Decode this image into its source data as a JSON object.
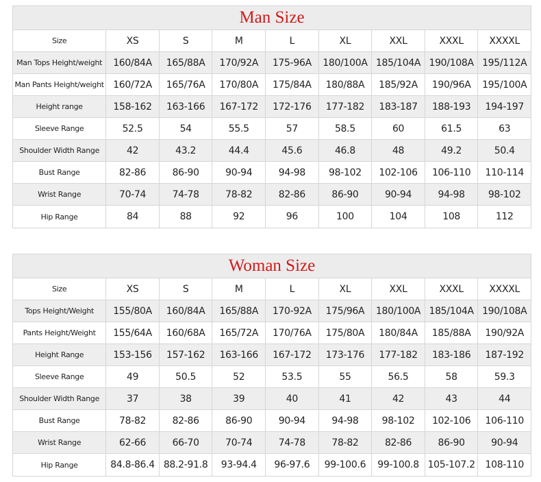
{
  "tables": [
    {
      "title": "Man Size",
      "header": [
        "Size",
        "XS",
        "S",
        "M",
        "L",
        "XL",
        "XXL",
        "XXXL",
        "XXXXL"
      ],
      "rows": [
        [
          "Man Tops Height/weight",
          "160/84A",
          "165/88A",
          "170/92A",
          "175-96A",
          "180/100A",
          "185/104A",
          "190/108A",
          "195/112A"
        ],
        [
          "Man Pants Height/weight",
          "160/72A",
          "165/76A",
          "170/80A",
          "175/84A",
          "180/88A",
          "185/92A",
          "190/96A",
          "195/100A"
        ],
        [
          "Height range",
          "158-162",
          "163-166",
          "167-172",
          "172-176",
          "177-182",
          "183-187",
          "188-193",
          "194-197"
        ],
        [
          "Sleeve Range",
          "52.5",
          "54",
          "55.5",
          "57",
          "58.5",
          "60",
          "61.5",
          "63"
        ],
        [
          "Shoulder Width Range",
          "42",
          "43.2",
          "44.4",
          "45.6",
          "46.8",
          "48",
          "49.2",
          "50.4"
        ],
        [
          "Bust Range",
          "82-86",
          "86-90",
          "90-94",
          "94-98",
          "98-102",
          "102-106",
          "106-110",
          "110-114"
        ],
        [
          "Wrist Range",
          "70-74",
          "74-78",
          "78-82",
          "82-86",
          "86-90",
          "90-94",
          "94-98",
          "98-102"
        ],
        [
          "Hip Range",
          "84",
          "88",
          "92",
          "96",
          "100",
          "104",
          "108",
          "112"
        ]
      ]
    },
    {
      "title": "Woman Size",
      "header": [
        "Size",
        "XS",
        "S",
        "M",
        "L",
        "XL",
        "XXL",
        "XXXL",
        "XXXXL"
      ],
      "rows": [
        [
          "Tops Height/Weight",
          "155/80A",
          "160/84A",
          "165/88A",
          "170-92A",
          "175/96A",
          "180/100A",
          "185/104A",
          "190/108A"
        ],
        [
          "Pants Height/Weight",
          "155/64A",
          "160/68A",
          "165/72A",
          "170/76A",
          "175/80A",
          "180/84A",
          "185/88A",
          "190/92A"
        ],
        [
          "Height Range",
          "153-156",
          "157-162",
          "163-166",
          "167-172",
          "173-176",
          "177-182",
          "183-186",
          "187-192"
        ],
        [
          "Sleeve Range",
          "49",
          "50.5",
          "52",
          "53.5",
          "55",
          "56.5",
          "58",
          "59.3"
        ],
        [
          "Shoulder Width Range",
          "37",
          "38",
          "39",
          "40",
          "41",
          "42",
          "43",
          "44"
        ],
        [
          "Bust Range",
          "78-82",
          "82-86",
          "86-90",
          "90-94",
          "94-98",
          "98-102",
          "102-106",
          "106-110"
        ],
        [
          "Wrist Range",
          "62-66",
          "66-70",
          "70-74",
          "74-78",
          "78-82",
          "82-86",
          "86-90",
          "90-94"
        ],
        [
          "Hip Range",
          "84.8-86.4",
          "88.2-91.8",
          "93-94.4",
          "96-97.6",
          "99-100.6",
          "99-100.8",
          "105-107.2",
          "108-110"
        ]
      ]
    }
  ]
}
